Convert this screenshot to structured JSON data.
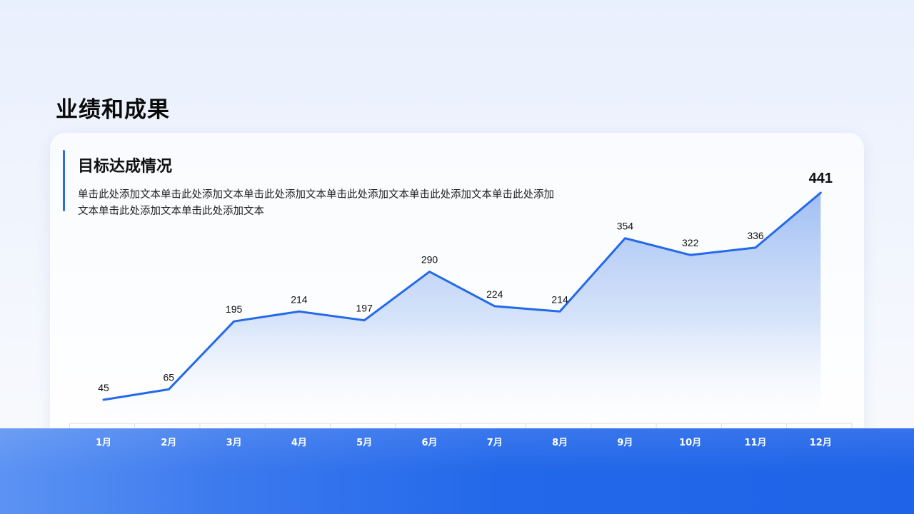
{
  "page": {
    "title": "业绩和成果"
  },
  "card": {
    "title": "目标达成情况",
    "description": "单击此处添加文本单击此处添加文本单击此处添加文本单击此处添加文本单击此处添加文本单击此处添加文本单击此处添加文本单击此处添加文本"
  },
  "colors": {
    "accent": "#2a6de6",
    "line": "#2369e8",
    "band": "#1f63e8"
  },
  "chart_data": {
    "type": "area",
    "categories": [
      "1月",
      "2月",
      "3月",
      "4月",
      "5月",
      "6月",
      "7月",
      "8月",
      "9月",
      "10月",
      "11月",
      "12月"
    ],
    "values": [
      45,
      65,
      195,
      214,
      197,
      290,
      224,
      214,
      354,
      322,
      336,
      441
    ],
    "title": "",
    "xlabel": "",
    "ylabel": "",
    "ylim": [
      0,
      441
    ],
    "grid": false,
    "legend": "none",
    "data_labels": true
  }
}
